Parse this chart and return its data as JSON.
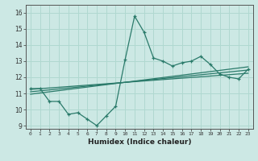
{
  "xlabel": "Humidex (Indice chaleur)",
  "ylabel": "",
  "xlim": [
    -0.5,
    23.5
  ],
  "ylim": [
    8.8,
    16.5
  ],
  "yticks": [
    9,
    10,
    11,
    12,
    13,
    14,
    15,
    16
  ],
  "xticks": [
    0,
    1,
    2,
    3,
    4,
    5,
    6,
    7,
    8,
    9,
    10,
    11,
    12,
    13,
    14,
    15,
    16,
    17,
    18,
    19,
    20,
    21,
    22,
    23
  ],
  "background_color": "#cce8e4",
  "grid_color": "#b0d8d0",
  "line_color": "#2a7a6a",
  "main_x": [
    0,
    1,
    2,
    3,
    4,
    5,
    6,
    7,
    8,
    9,
    10,
    11,
    12,
    13,
    14,
    15,
    16,
    17,
    18,
    19,
    20,
    21,
    22,
    23
  ],
  "main_y": [
    11.3,
    11.3,
    10.5,
    10.5,
    9.7,
    9.8,
    9.4,
    9.0,
    9.6,
    10.2,
    13.1,
    15.8,
    14.8,
    13.2,
    13.0,
    12.7,
    12.9,
    13.0,
    13.3,
    12.8,
    12.2,
    12.0,
    11.9,
    12.5
  ],
  "line1_x": [
    0,
    23
  ],
  "line1_y": [
    11.25,
    12.25
  ],
  "line2_x": [
    0,
    23
  ],
  "line2_y": [
    11.1,
    12.45
  ],
  "line3_x": [
    0,
    23
  ],
  "line3_y": [
    10.95,
    12.65
  ]
}
